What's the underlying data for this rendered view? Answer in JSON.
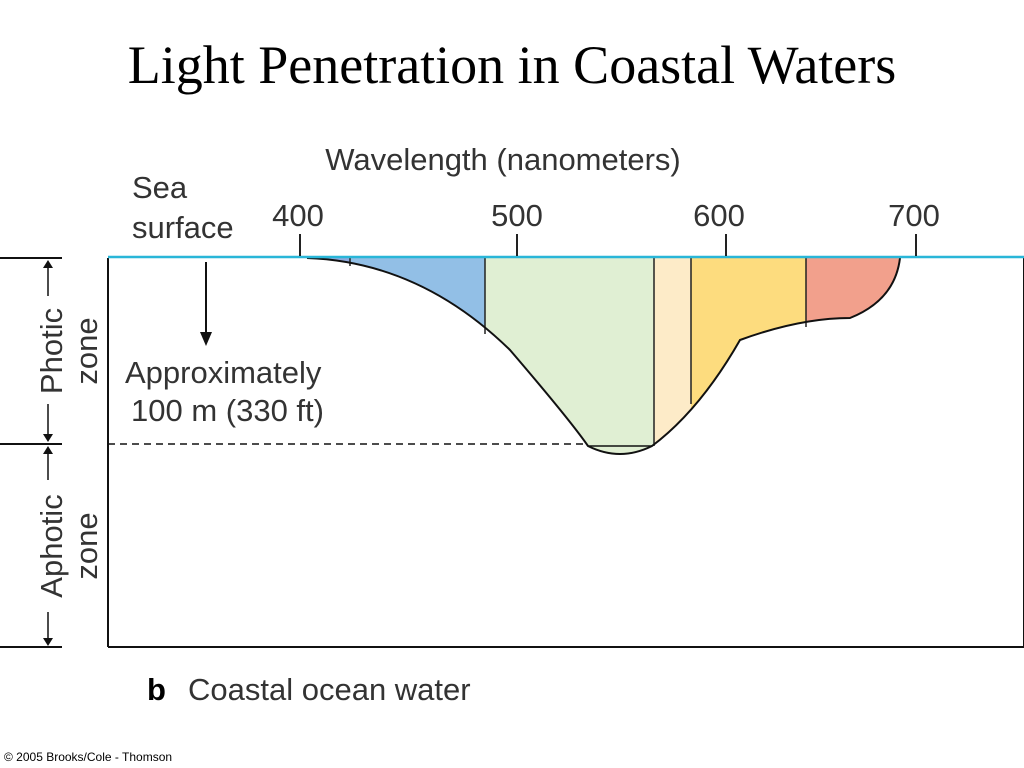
{
  "title": "Light Penetration in Coastal Waters",
  "axis": {
    "label": "Wavelength (nanometers)",
    "ticks": [
      "400",
      "500",
      "600",
      "700"
    ]
  },
  "labels": {
    "sea_surface_line1": "Sea",
    "sea_surface_line2": "surface",
    "depth_line1": "Approximately",
    "depth_line2": "100 m (330 ft)",
    "photic_line1": "Photic",
    "photic_line2": "zone",
    "aphotic_line1": "Aphotic",
    "aphotic_line2": "zone"
  },
  "caption": {
    "letter": "b",
    "text": "Coastal ocean water"
  },
  "credit": "© 2005 Brooks/Cole - Thomson",
  "colors": {
    "sea_surface": "#29b6d8",
    "violet": "#8fa8dc",
    "blue": "#92bfe6",
    "green": "#e0efd3",
    "yellow_light": "#fdebc8",
    "yellow": "#fddc7e",
    "red": "#f2a08c"
  }
}
